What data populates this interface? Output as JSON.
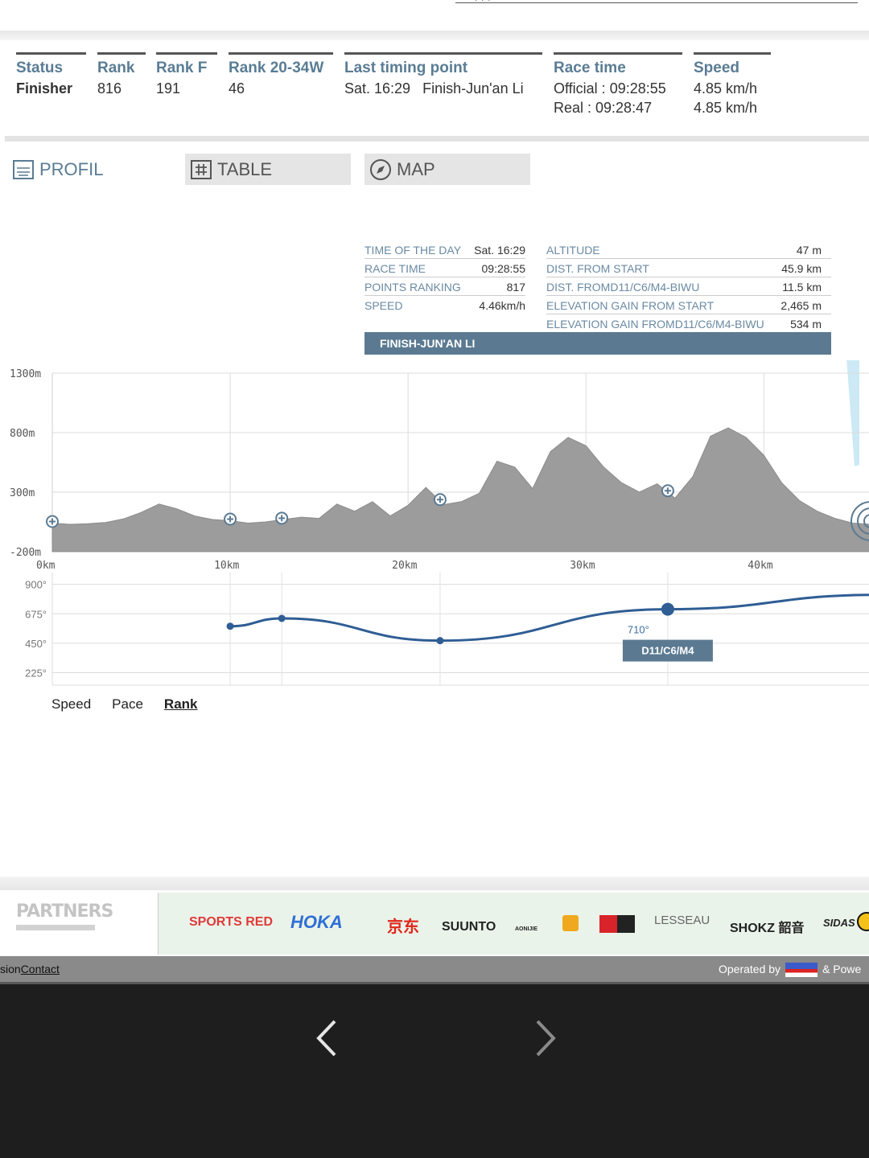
{
  "summary": {
    "status": {
      "label": "Status",
      "value": "Finisher"
    },
    "rank": {
      "label": "Rank",
      "value": "816"
    },
    "rank_f": {
      "label": "Rank F",
      "value": "191"
    },
    "rank_cat": {
      "label": "Rank 20-34W",
      "value": "46"
    },
    "last_timing": {
      "label": "Last timing point",
      "time": "Sat. 16:29",
      "place": "Finish-Jun'an Li"
    },
    "race_time": {
      "label": "Race time",
      "official": "Official : 09:28:55",
      "real": "Real : 09:28:47"
    },
    "speed": {
      "label": "Speed",
      "v1": "4.85 km/h",
      "v2": "4.85 km/h"
    }
  },
  "tabs": {
    "profil": "PROFIL",
    "table": "TABLE",
    "map": "MAP"
  },
  "info": {
    "left": [
      {
        "k": "TIME OF THE DAY",
        "v": "Sat. 16:29"
      },
      {
        "k": "RACE TIME",
        "v": "09:28:55"
      },
      {
        "k": "POINTS RANKING",
        "v": "817"
      },
      {
        "k": "SPEED",
        "v": "4.46km/h"
      }
    ],
    "right": [
      {
        "k": "ALTITUDE",
        "v": "47 m"
      },
      {
        "k": "DIST. FROM START",
        "v": "45.9 km"
      },
      {
        "k": "DIST. FROMD11/C6/M4-BIWU",
        "v": "11.5 km"
      },
      {
        "k": "ELEVATION GAIN FROM START",
        "v": "2,465 m"
      },
      {
        "k": "ELEVATION GAIN FROMD11/C6/M4-BIWU",
        "v": "534 m"
      }
    ],
    "banner": "FINISH-JUN'AN LI"
  },
  "chart_data": [
    {
      "type": "area",
      "y_ticks": [
        "1300m",
        "800m",
        "300m",
        "-200m"
      ],
      "x_ticks": [
        "0km",
        "10km",
        "20km",
        "30km",
        "40km"
      ],
      "ylim": [
        -200,
        1300
      ],
      "xlim": [
        0,
        46.5
      ],
      "x": [
        0,
        1,
        2,
        3,
        4,
        5,
        6,
        7,
        8,
        9,
        10,
        11,
        12,
        13,
        14,
        15,
        16,
        17,
        18,
        19,
        20,
        21,
        22,
        23,
        24,
        25,
        26,
        27,
        28,
        29,
        30,
        31,
        32,
        33,
        34,
        35,
        36,
        37,
        38,
        39,
        40,
        41,
        42,
        43,
        44,
        45,
        46
      ],
      "y": [
        40,
        30,
        35,
        45,
        75,
        130,
        200,
        160,
        100,
        70,
        60,
        40,
        50,
        70,
        90,
        80,
        200,
        140,
        220,
        100,
        190,
        340,
        195,
        220,
        290,
        560,
        510,
        330,
        640,
        760,
        690,
        510,
        380,
        300,
        370,
        250,
        430,
        770,
        840,
        760,
        610,
        380,
        230,
        140,
        80,
        40,
        30
      ],
      "markers_km": [
        0,
        10,
        12.9,
        21.8,
        34.6
      ],
      "marker_icon": "plus-circle-icon"
    },
    {
      "type": "line",
      "y_ticks": [
        "900°",
        "675°",
        "450°",
        "225°"
      ],
      "ylim": [
        130,
        990
      ],
      "x": [
        10,
        12.9,
        21.8,
        34.6,
        46.5
      ],
      "y": [
        580,
        640,
        470,
        710,
        820
      ],
      "highlight": {
        "label": "710°",
        "checkpoint": "D11/C6/M4"
      }
    }
  ],
  "chart_tabs": [
    "Speed",
    "Pace",
    "Rank"
  ],
  "partners": {
    "title": "PARTNERS",
    "logos": [
      "SPORTS RED",
      "HOKA",
      "京东",
      "SUUNTO",
      "AONIJIE",
      "LESSEAU",
      "SHOKZ 韶音",
      "SIDAS"
    ]
  },
  "footer": {
    "left_fragment": "sion",
    "contact": "Contact",
    "operated": "Operated by",
    "powered": "& Powe"
  },
  "colors": {
    "accent": "#5a7c94",
    "profile_fill": "#9c9c9c",
    "rank_line": "#2f5d94"
  }
}
